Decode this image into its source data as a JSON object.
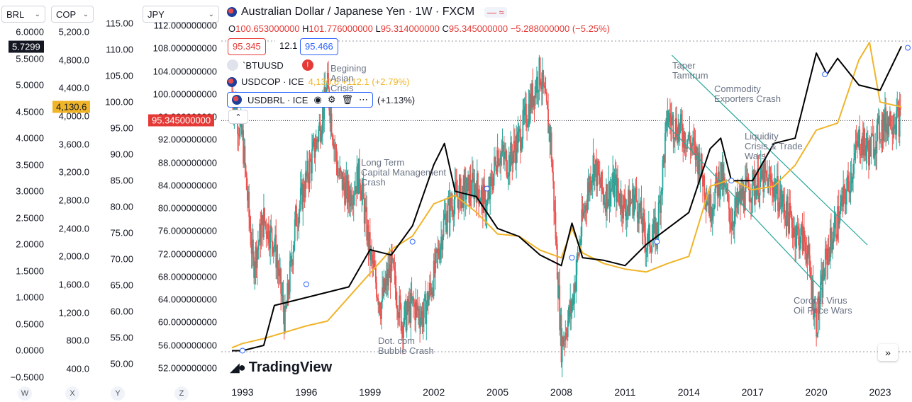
{
  "header": {
    "title": "Australian Dollar / Japanese Yen · 1W · FXCM",
    "ohlc": {
      "o_label": "O",
      "o_value": "100.653000000",
      "h_label": "H",
      "h_value": "101.776000000",
      "l_label": "L",
      "l_value": "95.314000000",
      "c_label": "C",
      "c_value": "95.345000000",
      "change": "−5.288000000 (−5.25%)"
    },
    "bid": "95.345",
    "spread": "12.1",
    "ask": "95.466"
  },
  "series_legend": [
    {
      "name": "`BTUUSD",
      "warning": "!"
    },
    {
      "name": "USDCOP · ICE",
      "value": "4,130.6 +112.1 (+2.79%)"
    },
    {
      "name": "USDBRL · ICE",
      "value": "(+1.13%)"
    }
  ],
  "axes": {
    "brl": {
      "label": "BRL",
      "ticks": [
        "6.0000",
        "5.5000",
        "5.0000",
        "4.5000",
        "4.0000",
        "3.5000",
        "3.0000",
        "2.5000",
        "2.0000",
        "1.5000",
        "1.0000",
        "0.5000",
        "0.0000",
        "−0.5000"
      ],
      "last": "5.7299",
      "letter": "W"
    },
    "cop": {
      "label": "COP",
      "ticks": [
        "5,200.0",
        "4,800.0",
        "4,400.0",
        "4,000.0",
        "3,600.0",
        "3,200.0",
        "2,800.0",
        "2,400.0",
        "2,000.0",
        "1,600.0",
        "1,200.0",
        "800.0",
        "400.0"
      ],
      "last": "4,130.6",
      "letter": "X"
    },
    "btu": {
      "label": "",
      "ticks": [
        "115.00",
        "110.00",
        "105.00",
        "100.00",
        "95.00",
        "90.00",
        "85.00",
        "80.00",
        "75.00",
        "70.00",
        "65.00",
        "60.00",
        "55.00",
        "50.00"
      ],
      "letter": "Y"
    },
    "jpy": {
      "label": "JPY",
      "ticks": [
        "112.000000000",
        "108.000000000",
        "104.000000000",
        "100.000000000",
        "96.000000000",
        "92.000000000",
        "88.000000000",
        "84.000000000",
        "80.000000000",
        "76.000000000",
        "72.000000000",
        "68.000000000",
        "64.000000000",
        "60.000000000",
        "56.000000000",
        "52.000000000"
      ],
      "last": "95.345000000",
      "letter": "Z"
    }
  },
  "annotations": [
    {
      "text": "Begining\nAsian\nCrisis"
    },
    {
      "text": "Long Term\nCapital Management\nCrash"
    },
    {
      "text": "Dot. com\nBubble Crash"
    },
    {
      "text": "Taper\nTamtrum"
    },
    {
      "text": "Commodity\nExporters Crash"
    },
    {
      "text": "Liquidity\nCrisis & Trade\nWars"
    },
    {
      "text": "Corona Virus\nOil Price Wars"
    }
  ],
  "brand": "TradingView",
  "colors": {
    "up": "#26a69a",
    "down": "#ef5350",
    "cop_line": "#f0b429",
    "brl_line": "#000000",
    "channel": "#26a69a",
    "accent_red": "#e53935",
    "accent_blue": "#2962ff"
  },
  "chart_data": {
    "type": "line",
    "x": [
      "1993",
      "1996",
      "1999",
      "2002",
      "2005",
      "2008",
      "2011",
      "2014",
      "2017",
      "2020",
      "2023"
    ],
    "series": [
      {
        "name": "Australian Dollar / Japanese Yen",
        "kind": "candles",
        "x": [
          1992.5,
          1993,
          1993.5,
          1994,
          1994.5,
          1995,
          1995.5,
          1996,
          1996.5,
          1997,
          1997.5,
          1998,
          1998.5,
          1999,
          1999.5,
          2000,
          2000.5,
          2001,
          2001.5,
          2002,
          2002.5,
          2003,
          2003.5,
          2004,
          2004.5,
          2005,
          2005.5,
          2006,
          2006.5,
          2007,
          2007.5,
          2008,
          2008.5,
          2009,
          2009.5,
          2010,
          2010.5,
          2011,
          2011.5,
          2012,
          2012.5,
          2013,
          2013.5,
          2014,
          2014.5,
          2015,
          2015.5,
          2016,
          2016.5,
          2017,
          2017.5,
          2018,
          2018.5,
          2019,
          2019.5,
          2020,
          2020.5,
          2021,
          2021.5,
          2022,
          2022.5,
          2023,
          2023.5,
          2024
        ],
        "values": [
          100,
          92,
          70,
          78,
          74,
          60,
          78,
          85,
          92,
          101,
          86,
          82,
          86,
          72,
          63,
          70,
          60,
          63,
          61,
          68,
          78,
          82,
          83,
          84,
          80,
          90,
          88,
          92,
          98,
          104,
          92,
          56,
          63,
          78,
          88,
          82,
          84,
          80,
          82,
          74,
          76,
          96,
          94,
          92,
          88,
          80,
          86,
          78,
          82,
          84,
          85,
          84,
          80,
          76,
          74,
          60,
          72,
          78,
          84,
          92,
          90,
          94,
          96,
          95.345
        ]
      },
      {
        "name": "USDCOP · ICE",
        "x": [
          1992.5,
          1993,
          1994,
          1995,
          1996,
          1997,
          1998,
          1999,
          2000,
          2001,
          2002,
          2003,
          2004,
          2005,
          2006,
          2007,
          2008,
          2008.5,
          2009,
          2010,
          2011,
          2012,
          2013,
          2014,
          2015,
          2016,
          2017,
          2018,
          2019,
          2020,
          2021,
          2022,
          2022.5,
          2023,
          2024
        ],
        "values": [
          700,
          760,
          830,
          920,
          1010,
          1080,
          1420,
          1760,
          2100,
          2290,
          2750,
          2870,
          2630,
          2320,
          2290,
          2090,
          1980,
          2400,
          2050,
          1900,
          1820,
          1780,
          1900,
          2000,
          3000,
          3100,
          2950,
          3000,
          3300,
          3800,
          3900,
          4800,
          5050,
          4200,
          4130.6
        ]
      },
      {
        "name": "USDBRL · ICE",
        "x": [
          1992.5,
          1993,
          1994,
          1994.5,
          1995,
          1996,
          1997,
          1998,
          1999,
          2000,
          2001,
          2002,
          2002.5,
          2003,
          2004,
          2005,
          2006,
          2007,
          2008,
          2008.5,
          2009,
          2010,
          2011,
          2012,
          2013,
          2014,
          2015,
          2015.5,
          2016,
          2017,
          2018,
          2019,
          2020,
          2020.5,
          2021,
          2022,
          2023,
          2024
        ],
        "values": [
          0.0,
          0.0,
          0.1,
          0.85,
          0.9,
          1.0,
          1.1,
          1.2,
          1.9,
          1.8,
          2.35,
          3.5,
          3.9,
          3.0,
          2.9,
          2.3,
          2.15,
          1.8,
          1.6,
          2.4,
          1.75,
          1.7,
          1.6,
          2.0,
          2.3,
          2.6,
          3.8,
          4.0,
          3.2,
          3.2,
          3.9,
          4.0,
          5.6,
          5.2,
          5.5,
          5.0,
          4.9,
          5.7299
        ]
      }
    ],
    "ylim": [
      50,
      114
    ],
    "xlim": [
      1992,
      2024.5
    ],
    "grid": false,
    "legend": "top-left"
  }
}
